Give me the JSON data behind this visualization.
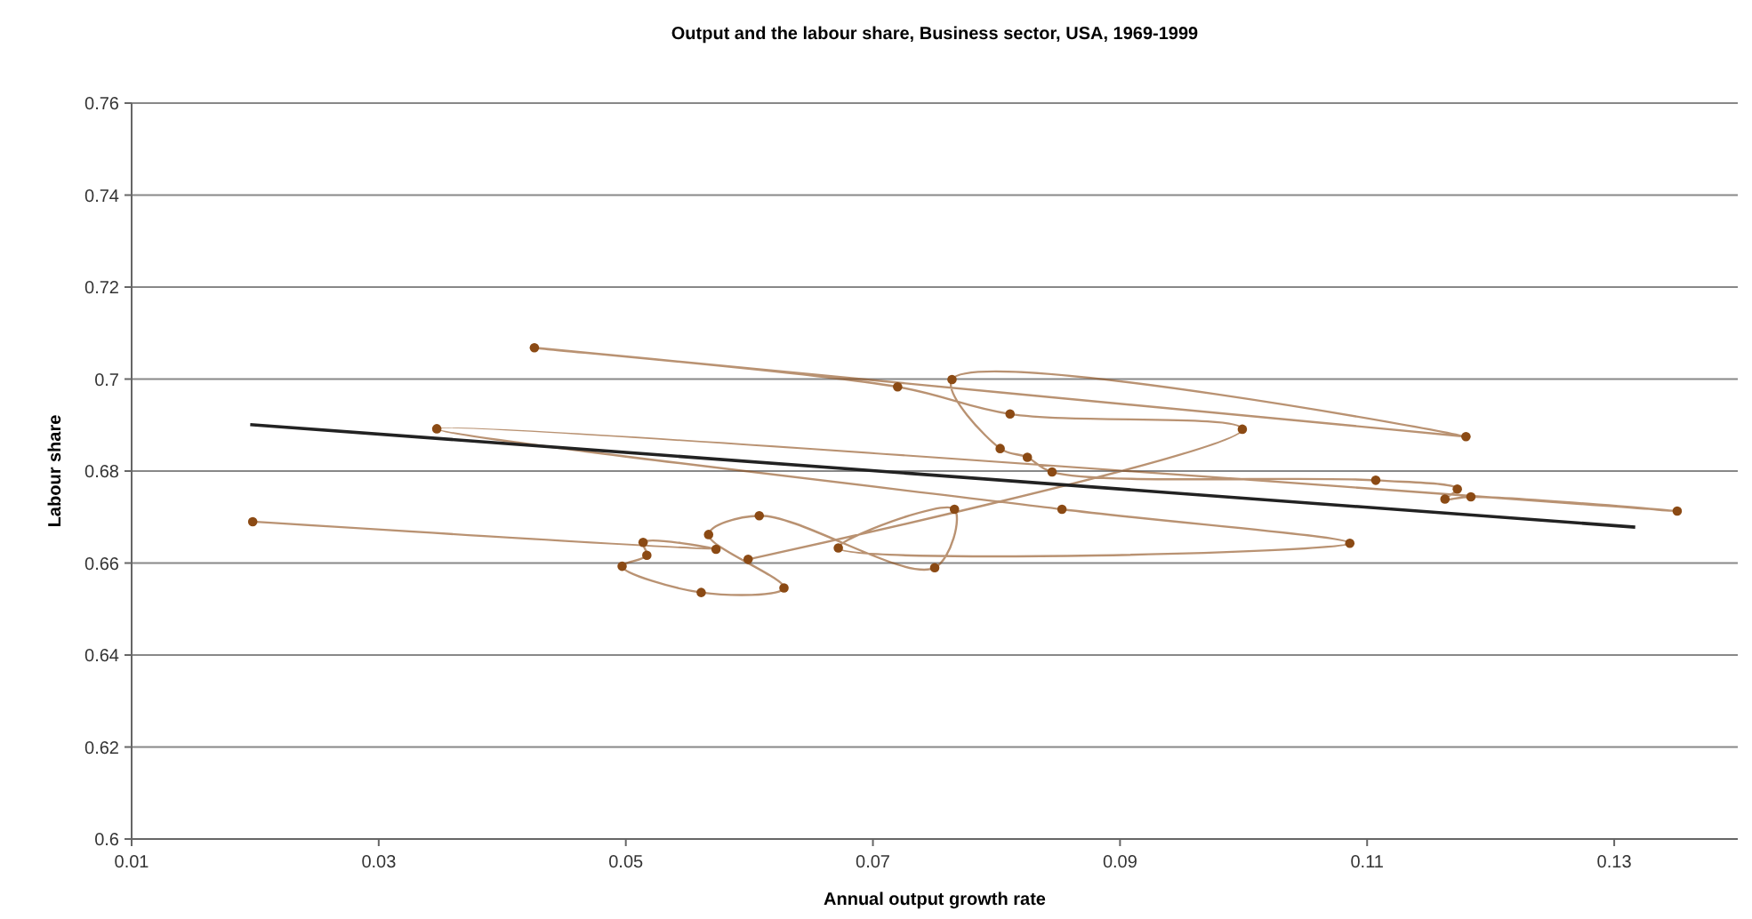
{
  "chart_data": {
    "type": "line",
    "title": "Output and the labour share, Business sector, USA, 1969-1999",
    "xlabel": "Annual output growth rate",
    "ylabel": "Labour share",
    "xlim": [
      0.01,
      0.14
    ],
    "xticks": [
      0.01,
      0.03,
      0.05,
      0.07,
      0.09,
      0.11,
      0.13
    ],
    "ylim": [
      0.6,
      0.76
    ],
    "yticks": [
      0.6,
      0.62,
      0.64,
      0.66,
      0.68,
      0.7,
      0.72,
      0.74,
      0.76
    ],
    "grid": "y",
    "series": [
      {
        "color": "#8b4a14",
        "marker": "circle",
        "x": [
          0.0198,
          0.0573,
          0.0514,
          0.0517,
          0.0497,
          0.0561,
          0.0628,
          0.0567,
          0.0608,
          0.075,
          0.0766,
          0.0672,
          0.1086,
          0.0853,
          0.0347,
          0.1351,
          0.1184,
          0.1163,
          0.1173,
          0.1107,
          0.0845,
          0.0825,
          0.0803,
          0.0764,
          0.118,
          0.0426,
          0.072,
          0.0811,
          0.0999,
          0.0599
        ],
        "values": [
          0.669,
          0.663,
          0.6645,
          0.6617,
          0.6593,
          0.6536,
          0.6546,
          0.6662,
          0.6703,
          0.659,
          0.6717,
          0.6633,
          0.6643,
          0.6717,
          0.6892,
          0.6713,
          0.6744,
          0.6739,
          0.6761,
          0.678,
          0.6798,
          0.683,
          0.6849,
          0.6999,
          0.6875,
          0.7068,
          0.6983,
          0.6924,
          0.6891,
          0.6608
        ]
      },
      {
        "color": "#222222",
        "marker": "none",
        "x": [
          0.0196,
          0.1317
        ],
        "values": [
          0.6901,
          0.6678
        ]
      }
    ]
  }
}
